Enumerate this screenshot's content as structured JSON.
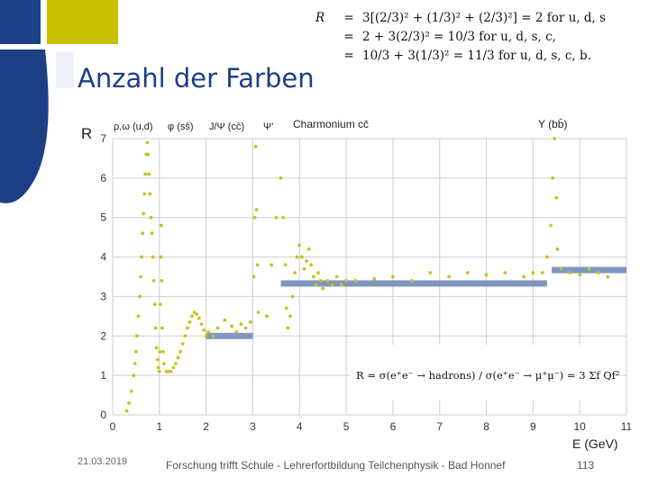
{
  "slide": {
    "title": "Anzahl der Farben",
    "equations": [
      {
        "lhs": "R",
        "op": "=",
        "rhs": "3[(2/3)² + (1/3)² + (2/3)²] = 2  for  u, d, s"
      },
      {
        "lhs": "",
        "op": "=",
        "rhs": "2 + 3(2/3)² = 10/3  for  u, d, s, c,"
      },
      {
        "lhs": "",
        "op": "=",
        "rhs": "10/3 + 3(1/3)² = 11/3  for  u, d, s, c, b."
      }
    ],
    "footer": {
      "date": "21.03.2019",
      "text": "Forschung trifft Schule - Lehrerfortbildung Teilchenphysik - Bad Honnef",
      "page": "113"
    },
    "colors": {
      "blue": "#1d3f86",
      "yellow": "#c7c100",
      "data": "#c8c21e",
      "band": "#7f97c0",
      "grid": "#cfcfcf"
    }
  },
  "chart_data": {
    "type": "scatter",
    "ylabel": "R",
    "xlabel": "E (GeV)",
    "xlim": [
      0,
      11
    ],
    "ylim": [
      0,
      7
    ],
    "x_ticks": [
      "0",
      "1",
      "2",
      "3",
      "4",
      "5",
      "6",
      "7",
      "8",
      "9",
      "10",
      "11"
    ],
    "y_ticks": [
      "0",
      "1",
      "2",
      "3",
      "4",
      "5",
      "6",
      "7"
    ],
    "grid": true,
    "resonance_labels": [
      "ρ,ω (u,d)",
      "φ (ss̄)",
      "J/Ψ (cc̄)",
      "Ψ'",
      "Charmonium cc̄",
      "Υ (bb̄)"
    ],
    "formula": "R = σ(e⁺e⁻ → hadrons) / σ(e⁺e⁻ → μ⁺μ⁻) = 3 Σf Qf²",
    "model_levels": [
      {
        "name": "u,d,s",
        "x": [
          2.0,
          3.0
        ],
        "y": 2.0
      },
      {
        "name": "u,d,s,c",
        "x": [
          3.6,
          9.3
        ],
        "y": 3.33
      },
      {
        "name": "u,d,s,c,b",
        "x": [
          9.4,
          11.0
        ],
        "y": 3.67
      }
    ],
    "data_points": [
      [
        0.3,
        0.1
      ],
      [
        0.35,
        0.3
      ],
      [
        0.4,
        0.6
      ],
      [
        0.45,
        1.0
      ],
      [
        0.48,
        1.3
      ],
      [
        0.5,
        1.6
      ],
      [
        0.52,
        2.0
      ],
      [
        0.55,
        2.5
      ],
      [
        0.58,
        3.0
      ],
      [
        0.6,
        3.5
      ],
      [
        0.62,
        4.0
      ],
      [
        0.64,
        4.6
      ],
      [
        0.66,
        5.1
      ],
      [
        0.68,
        5.6
      ],
      [
        0.7,
        6.1
      ],
      [
        0.72,
        6.6
      ],
      [
        0.74,
        6.9
      ],
      [
        0.76,
        6.6
      ],
      [
        0.78,
        6.1
      ],
      [
        0.8,
        5.6
      ],
      [
        0.82,
        5.0
      ],
      [
        0.84,
        4.6
      ],
      [
        0.86,
        4.0
      ],
      [
        0.88,
        3.4
      ],
      [
        0.9,
        2.8
      ],
      [
        0.92,
        2.2
      ],
      [
        0.94,
        1.7
      ],
      [
        0.96,
        1.4
      ],
      [
        0.98,
        1.2
      ],
      [
        1.0,
        1.1
      ],
      [
        1.01,
        1.6
      ],
      [
        1.02,
        2.8
      ],
      [
        1.03,
        4.0
      ],
      [
        1.04,
        4.8
      ],
      [
        1.05,
        3.4
      ],
      [
        1.06,
        2.2
      ],
      [
        1.08,
        1.6
      ],
      [
        1.1,
        1.3
      ],
      [
        1.15,
        1.1
      ],
      [
        1.2,
        1.1
      ],
      [
        1.25,
        1.1
      ],
      [
        1.3,
        1.2
      ],
      [
        1.35,
        1.3
      ],
      [
        1.4,
        1.45
      ],
      [
        1.45,
        1.6
      ],
      [
        1.5,
        1.8
      ],
      [
        1.55,
        2.0
      ],
      [
        1.6,
        2.2
      ],
      [
        1.65,
        2.35
      ],
      [
        1.7,
        2.5
      ],
      [
        1.75,
        2.6
      ],
      [
        1.8,
        2.55
      ],
      [
        1.85,
        2.45
      ],
      [
        1.9,
        2.3
      ],
      [
        1.95,
        2.15
      ],
      [
        2.0,
        2.0
      ],
      [
        2.05,
        2.1
      ],
      [
        2.15,
        2.0
      ],
      [
        2.25,
        2.2
      ],
      [
        2.4,
        2.4
      ],
      [
        2.55,
        2.25
      ],
      [
        2.65,
        2.1
      ],
      [
        2.75,
        2.3
      ],
      [
        2.85,
        2.2
      ],
      [
        2.95,
        2.35
      ],
      [
        3.02,
        3.5
      ],
      [
        3.04,
        5.0
      ],
      [
        3.06,
        6.8
      ],
      [
        3.08,
        5.2
      ],
      [
        3.1,
        3.8
      ],
      [
        3.12,
        2.6
      ],
      [
        3.3,
        2.5
      ],
      [
        3.4,
        3.8
      ],
      [
        3.5,
        5.0
      ],
      [
        3.6,
        6.0
      ],
      [
        3.65,
        5.0
      ],
      [
        3.7,
        3.8
      ],
      [
        3.72,
        2.7
      ],
      [
        3.75,
        2.2
      ],
      [
        3.8,
        2.5
      ],
      [
        3.85,
        3.0
      ],
      [
        3.9,
        3.6
      ],
      [
        3.95,
        4.0
      ],
      [
        4.0,
        4.3
      ],
      [
        4.05,
        4.0
      ],
      [
        4.1,
        3.7
      ],
      [
        4.15,
        3.9
      ],
      [
        4.2,
        4.2
      ],
      [
        4.25,
        3.8
      ],
      [
        4.3,
        3.5
      ],
      [
        4.35,
        3.3
      ],
      [
        4.4,
        3.6
      ],
      [
        4.45,
        3.4
      ],
      [
        4.5,
        3.2
      ],
      [
        4.6,
        3.4
      ],
      [
        4.7,
        3.3
      ],
      [
        4.8,
        3.5
      ],
      [
        4.9,
        3.3
      ],
      [
        5.0,
        3.4
      ],
      [
        5.2,
        3.4
      ],
      [
        5.6,
        3.45
      ],
      [
        6.0,
        3.5
      ],
      [
        6.4,
        3.4
      ],
      [
        6.8,
        3.6
      ],
      [
        7.2,
        3.5
      ],
      [
        7.6,
        3.6
      ],
      [
        8.0,
        3.55
      ],
      [
        8.4,
        3.6
      ],
      [
        8.8,
        3.5
      ],
      [
        9.0,
        3.6
      ],
      [
        9.2,
        3.6
      ],
      [
        9.3,
        4.0
      ],
      [
        9.38,
        4.8
      ],
      [
        9.42,
        6.0
      ],
      [
        9.46,
        7.0
      ],
      [
        9.5,
        5.5
      ],
      [
        9.52,
        4.2
      ],
      [
        9.6,
        3.7
      ],
      [
        9.8,
        3.6
      ],
      [
        10.0,
        3.55
      ],
      [
        10.2,
        3.7
      ],
      [
        10.4,
        3.6
      ],
      [
        10.6,
        3.5
      ]
    ]
  }
}
